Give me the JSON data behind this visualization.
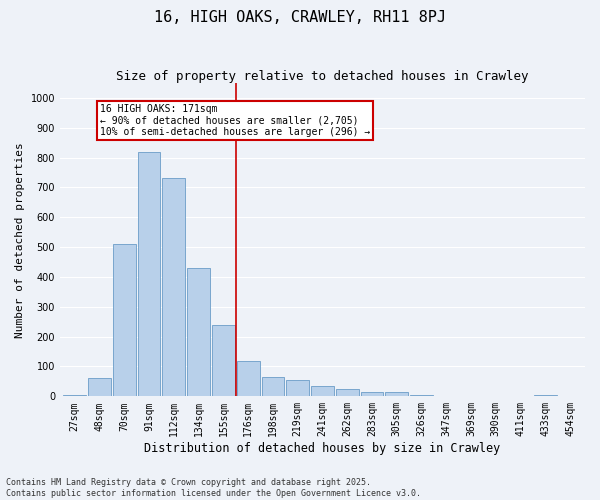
{
  "title": "16, HIGH OAKS, CRAWLEY, RH11 8PJ",
  "subtitle": "Size of property relative to detached houses in Crawley",
  "xlabel": "Distribution of detached houses by size in Crawley",
  "ylabel": "Number of detached properties",
  "bins": [
    "27sqm",
    "48sqm",
    "70sqm",
    "91sqm",
    "112sqm",
    "134sqm",
    "155sqm",
    "176sqm",
    "198sqm",
    "219sqm",
    "241sqm",
    "262sqm",
    "283sqm",
    "305sqm",
    "326sqm",
    "347sqm",
    "369sqm",
    "390sqm",
    "411sqm",
    "433sqm",
    "454sqm"
  ],
  "values": [
    5,
    60,
    510,
    820,
    730,
    430,
    240,
    120,
    65,
    55,
    35,
    25,
    15,
    15,
    5,
    0,
    0,
    0,
    0,
    5,
    0
  ],
  "bar_color": "#b8d0ea",
  "bar_edge_color": "#6a9dc8",
  "vline_color": "#cc0000",
  "annotation_text": "16 HIGH OAKS: 171sqm\n← 90% of detached houses are smaller (2,705)\n10% of semi-detached houses are larger (296) →",
  "annotation_box_color": "#ffffff",
  "annotation_box_edge_color": "#cc0000",
  "ylim": [
    0,
    1050
  ],
  "yticks": [
    0,
    100,
    200,
    300,
    400,
    500,
    600,
    700,
    800,
    900,
    1000
  ],
  "background_color": "#eef2f8",
  "grid_color": "#ffffff",
  "footnote": "Contains HM Land Registry data © Crown copyright and database right 2025.\nContains public sector information licensed under the Open Government Licence v3.0.",
  "title_fontsize": 11,
  "subtitle_fontsize": 9,
  "xlabel_fontsize": 8.5,
  "ylabel_fontsize": 8,
  "tick_fontsize": 7,
  "annotation_fontsize": 7,
  "footnote_fontsize": 6
}
